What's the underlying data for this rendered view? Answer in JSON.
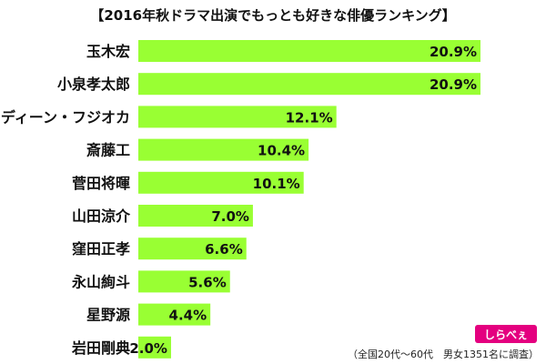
{
  "title": "【2016年秋ドラマ出演でもっとも好きな俳優ランキング】",
  "footnote": "（全国20代〜60代　男女1351名に調査）",
  "logo": {
    "text": "しらべぇ"
  },
  "colors": {
    "bar": "#99ff33",
    "text": "#111111",
    "logo": "#e4007f"
  },
  "chart_data": {
    "type": "bar",
    "orientation": "horizontal",
    "title": "【2016年秋ドラマ出演でもっとも好きな俳優ランキング】",
    "categories": [
      "玉木宏",
      "小泉孝太郎",
      "ディーン・フジオカ",
      "斎藤工",
      "菅田将暉",
      "山田涼介",
      "窪田正孝",
      "永山絢斗",
      "星野源",
      "岩田剛典"
    ],
    "values": [
      20.9,
      20.9,
      12.1,
      10.4,
      10.1,
      7.0,
      6.6,
      5.6,
      4.4,
      2.0
    ],
    "value_labels": [
      "20.9%",
      "20.9%",
      "12.1%",
      "10.4%",
      "10.1%",
      "7.0%",
      "6.6%",
      "5.6%",
      "4.4%",
      "2.0%"
    ],
    "unit": "%",
    "xlim": [
      0,
      20.9
    ],
    "grid": false,
    "legend": "none"
  }
}
